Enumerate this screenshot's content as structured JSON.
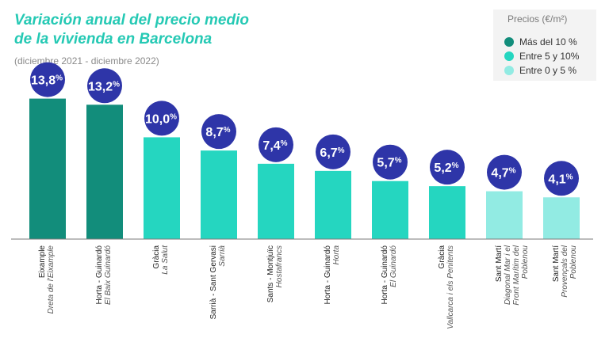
{
  "title_line1": "Variación anual del precio medio",
  "title_line2": "de la vivienda en Barcelona",
  "subtitle": "(diciembre 2021 - diciembre 2022)",
  "legend": {
    "title": "Precios (€/m²)",
    "items": [
      {
        "label": "Más del 10 %",
        "color": "#128d7b"
      },
      {
        "label": "Entre 5 y 10%",
        "color": "#25d6c0"
      },
      {
        "label": "Entre 0 y 5 %",
        "color": "#92ebe3"
      }
    ]
  },
  "colors": {
    "high": "#128d7b",
    "mid": "#25d6c0",
    "low": "#92ebe3",
    "bubble": "#2e35a8"
  },
  "chart_data": {
    "type": "bar",
    "categories": [
      {
        "district": "Eixample",
        "neighbourhood": "Dreta de l'Eixample"
      },
      {
        "district": "Horta - Guinardó",
        "neighbourhood": "El Baix Guinardó"
      },
      {
        "district": "Gràcia",
        "neighbourhood": "La Salut"
      },
      {
        "district": "Sarrià - Sant Gervasi",
        "neighbourhood": "Sarrià"
      },
      {
        "district": "Sants - Montjuïc",
        "neighbourhood": "Hostafrancs"
      },
      {
        "district": "Horta - Guinardó",
        "neighbourhood": "Horta"
      },
      {
        "district": "Horta - Guinardó",
        "neighbourhood": "El Guinardó"
      },
      {
        "district": "Gràcia",
        "neighbourhood": "Vallcarca i els Penitents"
      },
      {
        "district": "Sant Martí",
        "neighbourhood": "Diagonal Mar i el Front Marítim del Poblenou"
      },
      {
        "district": "Sant Martí",
        "neighbourhood": "Provençals del Poblenou"
      }
    ],
    "values": [
      13.8,
      13.2,
      10.0,
      8.7,
      7.4,
      6.7,
      5.7,
      5.2,
      4.7,
      4.1
    ],
    "value_labels": [
      "13,8",
      "13,2",
      "10,0",
      "8,7",
      "7,4",
      "6,7",
      "5,7",
      "5,2",
      "4,7",
      "4,1"
    ],
    "unit": "%",
    "ylim": [
      0,
      14
    ]
  }
}
